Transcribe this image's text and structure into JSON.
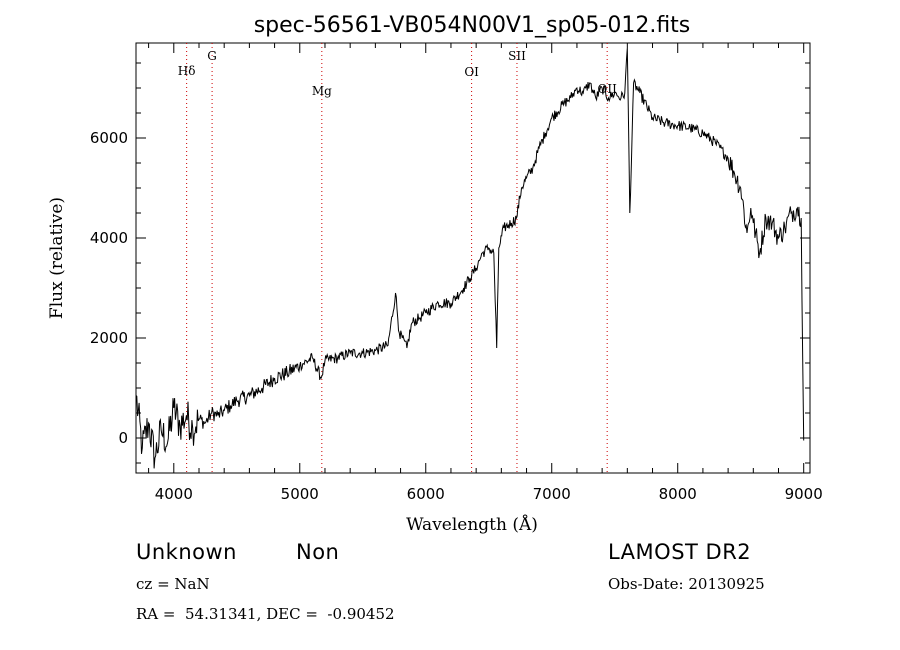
{
  "chart_data": {
    "type": "line",
    "title": "spec-56561-VB054N00V1_sp05-012.fits",
    "xlabel": "Wavelength (Å)",
    "ylabel": "Flux (relative)",
    "xlim": [
      3700,
      9050
    ],
    "ylim": [
      -700,
      7900
    ],
    "xticks": [
      4000,
      5000,
      6000,
      7000,
      8000,
      9000
    ],
    "yticks": [
      0,
      2000,
      4000,
      6000
    ],
    "xtick_labels": [
      "4000",
      "5000",
      "6000",
      "7000",
      "8000",
      "9000"
    ],
    "ytick_labels": [
      "0",
      "2000",
      "4000",
      "6000"
    ],
    "grid": false,
    "line_color": "#000000",
    "marker_color": "#cc0000",
    "series": [
      {
        "x": [
          3700,
          3750,
          3800,
          3850,
          3900,
          3950,
          4000,
          4050,
          4100,
          4150,
          4200,
          4250,
          4300,
          4350,
          4400,
          4450,
          4500,
          4600,
          4700,
          4800,
          4900,
          5000,
          5100,
          5170,
          5200,
          5300,
          5400,
          5500,
          5600,
          5700,
          5760,
          5790,
          5850,
          5890,
          5950,
          6000,
          6100,
          6200,
          6300,
          6350,
          6400,
          6450,
          6500,
          6540,
          6563,
          6580,
          6620,
          6680,
          6720,
          6760,
          6800,
          6850,
          6900,
          6950,
          7000,
          7100,
          7150,
          7200,
          7250,
          7300,
          7350,
          7400,
          7450,
          7500,
          7550,
          7580,
          7600,
          7620,
          7650,
          7700,
          7800,
          7900,
          8000,
          8100,
          8200,
          8300,
          8400,
          8450,
          8500,
          8550,
          8580,
          8600,
          8650,
          8700,
          8750,
          8800,
          8850,
          8900,
          8950,
          8980,
          9000
        ],
        "y": [
          850,
          -200,
          300,
          -400,
          150,
          -100,
          600,
          250,
          450,
          200,
          380,
          300,
          500,
          450,
          550,
          650,
          750,
          850,
          1000,
          1200,
          1300,
          1450,
          1600,
          1200,
          1550,
          1600,
          1700,
          1700,
          1750,
          1850,
          2900,
          2100,
          1800,
          2300,
          2400,
          2500,
          2700,
          2700,
          3000,
          3200,
          3400,
          3700,
          3800,
          3700,
          1800,
          3800,
          4200,
          4300,
          4400,
          5000,
          5200,
          5400,
          5800,
          6100,
          6400,
          6700,
          6800,
          7000,
          6900,
          7100,
          6800,
          7000,
          6800,
          6900,
          6800,
          6900,
          7800,
          4500,
          7100,
          6900,
          6400,
          6300,
          6250,
          6200,
          6100,
          5900,
          5600,
          5300,
          5000,
          4100,
          4600,
          4300,
          3700,
          4400,
          4300,
          4000,
          4200,
          4500,
          4600,
          4400,
          -50
        ]
      }
    ],
    "line_markers": [
      {
        "x": 4102,
        "label": "Hδ"
      },
      {
        "x": 4304,
        "label": "G"
      },
      {
        "x": 5175,
        "label": "Mg"
      },
      {
        "x": 6364,
        "label": "OI"
      },
      {
        "x": 6724,
        "label": "SII"
      },
      {
        "x": 7440,
        "label": "OII"
      }
    ]
  },
  "info": {
    "class": "Unknown",
    "subclass": "Non",
    "survey": "LAMOST DR2",
    "cz": "cz = NaN",
    "obs_date": "Obs-Date: 20130925",
    "radec": "RA =  54.31341, DEC =  -0.90452"
  }
}
